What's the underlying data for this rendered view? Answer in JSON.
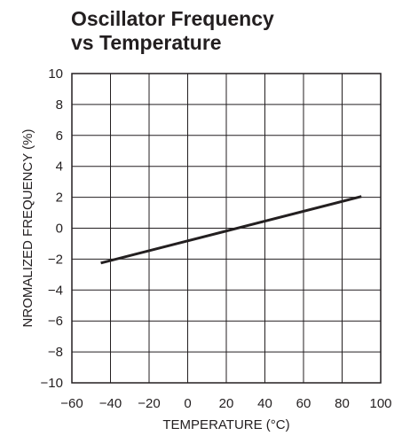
{
  "chart_data": {
    "type": "line",
    "title_lines": [
      "Oscillator Frequency",
      "vs Temperature"
    ],
    "xlabel": "TEMPERATURE (°C)",
    "ylabel": "NROMALIZED FREQUENCY (%)",
    "xlim": [
      -60,
      100
    ],
    "ylim": [
      -10,
      10
    ],
    "x_ticks": [
      -60,
      -40,
      -20,
      0,
      20,
      40,
      60,
      80,
      100
    ],
    "y_ticks": [
      -10,
      -8,
      -6,
      -4,
      -2,
      0,
      2,
      4,
      6,
      8,
      10
    ],
    "x_tick_labels": [
      "−60",
      "−40",
      "−20",
      "0",
      "20",
      "40",
      "60",
      "80",
      "100"
    ],
    "y_tick_labels": [
      "−10",
      "−8",
      "−6",
      "−4",
      "−2",
      "0",
      "2",
      "4",
      "6",
      "8",
      "10"
    ],
    "grid": true,
    "series": [
      {
        "x": [
          -45,
          90
        ],
        "y": [
          -2.25,
          2.05
        ]
      }
    ],
    "colors": {
      "line": "#231f20",
      "grid": "#231f20",
      "text": "#231f20"
    }
  }
}
